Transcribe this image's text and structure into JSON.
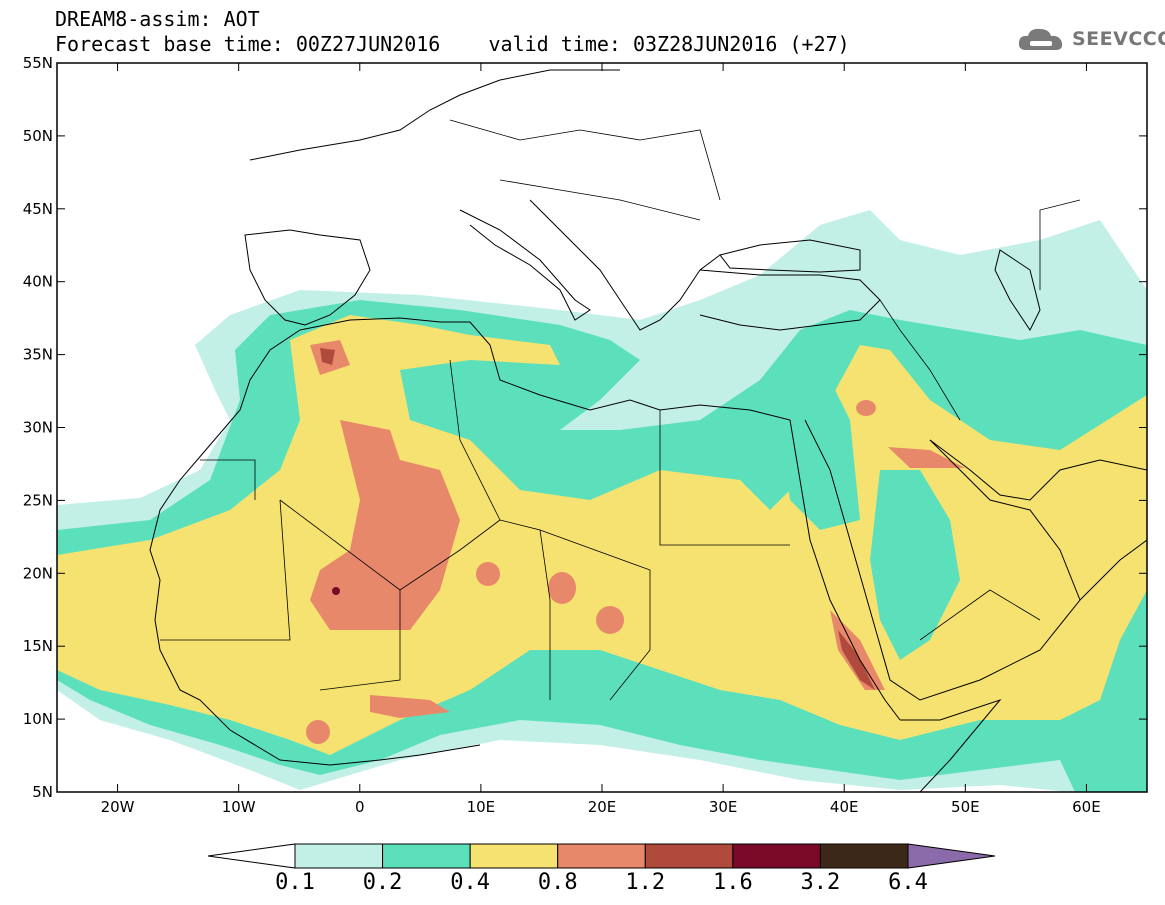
{
  "header": {
    "title_line1": "DREAM8-assim: AOT",
    "base_time_label": "Forecast base time: 00Z27JUN2016",
    "valid_time_label": "valid time: 03Z28JUN2016 (+27)"
  },
  "logo": {
    "text": "SEEVCCC",
    "icon": "cloud-icon",
    "color": "#777777"
  },
  "map": {
    "lon_range": [
      -25,
      65
    ],
    "lat_range": [
      5,
      55
    ],
    "lon_ticks": [
      {
        "value": -20,
        "label": "20W"
      },
      {
        "value": -10,
        "label": "10W"
      },
      {
        "value": 0,
        "label": "0"
      },
      {
        "value": 10,
        "label": "10E"
      },
      {
        "value": 20,
        "label": "20E"
      },
      {
        "value": 30,
        "label": "30E"
      },
      {
        "value": 40,
        "label": "40E"
      },
      {
        "value": 50,
        "label": "50E"
      },
      {
        "value": 60,
        "label": "60E"
      }
    ],
    "lat_ticks": [
      {
        "value": 55,
        "label": "55N"
      },
      {
        "value": 50,
        "label": "50N"
      },
      {
        "value": 45,
        "label": "45N"
      },
      {
        "value": 40,
        "label": "40N"
      },
      {
        "value": 35,
        "label": "35N"
      },
      {
        "value": 30,
        "label": "30N"
      },
      {
        "value": 25,
        "label": "25N"
      },
      {
        "value": 20,
        "label": "20N"
      },
      {
        "value": 15,
        "label": "15N"
      },
      {
        "value": 10,
        "label": "10N"
      },
      {
        "value": 5,
        "label": "5N"
      }
    ]
  },
  "colorbar": {
    "levels": [
      "0.1",
      "0.2",
      "0.4",
      "0.8",
      "1.2",
      "1.6",
      "3.2",
      "6.4"
    ],
    "colors": [
      "#ffffff",
      "#c2f0e6",
      "#5ce0bc",
      "#f6e270",
      "#e8886a",
      "#b04a3c",
      "#7a0a28",
      "#3c2818",
      "#8a6aa8"
    ]
  }
}
